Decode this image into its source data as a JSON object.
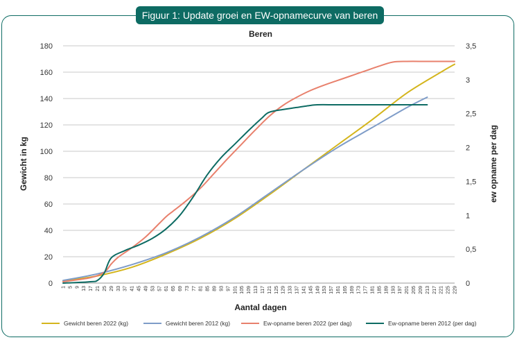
{
  "figure_title": "Figuur 1: Update groei en EW-opnamecurve van beren",
  "chart_data": {
    "type": "line",
    "title": "Beren",
    "xlabel": "Aantal dagen",
    "ylabel": "Gewicht in kg",
    "y2label": "ew opname per dag",
    "ylim": [
      0,
      180
    ],
    "y2lim": [
      0,
      3.5
    ],
    "yticks": [
      "0",
      "20",
      "40",
      "60",
      "80",
      "100",
      "120",
      "140",
      "160",
      "180"
    ],
    "y2ticks": [
      "0",
      "0,5",
      "1",
      "1,5",
      "2",
      "2,5",
      "3",
      "3,5"
    ],
    "xticks": [
      1,
      5,
      9,
      13,
      17,
      21,
      25,
      29,
      33,
      37,
      41,
      45,
      49,
      53,
      57,
      61,
      65,
      69,
      73,
      77,
      81,
      85,
      89,
      93,
      97,
      101,
      105,
      109,
      113,
      117,
      121,
      125,
      129,
      133,
      137,
      141,
      145,
      149,
      153,
      157,
      161,
      165,
      169,
      173,
      177,
      181,
      185,
      189,
      193,
      197,
      201,
      205,
      209,
      213,
      217,
      221,
      225,
      229
    ],
    "grid": true,
    "legend_position": "bottom",
    "series": [
      {
        "name": "Gewicht beren 2022 (kg)",
        "axis": "left",
        "color": "#d4b51c",
        "x": [
          1,
          21,
          41,
          61,
          81,
          101,
          121,
          141,
          161,
          181,
          201,
          221,
          229
        ],
        "values": [
          1.5,
          5.5,
          12,
          22,
          34,
          49,
          67,
          86,
          105,
          124,
          144,
          160,
          166
        ]
      },
      {
        "name": "Gewicht beren 2012 (kg)",
        "axis": "left",
        "color": "#7e9cc8",
        "x": [
          1,
          21,
          41,
          61,
          81,
          101,
          121,
          141,
          161,
          181,
          201,
          213
        ],
        "values": [
          2,
          7,
          14,
          23,
          35,
          50,
          68,
          86,
          103,
          118,
          133,
          141
        ]
      },
      {
        "name": "Ew-opname beren 2022 (per dag)",
        "axis": "right",
        "color": "#e8806c",
        "x": [
          1,
          17,
          25,
          29,
          33,
          41,
          49,
          57,
          61,
          65,
          73,
          81,
          89,
          97,
          105,
          113,
          121,
          129,
          137,
          145,
          153,
          161,
          169,
          177,
          185,
          193,
          201,
          213,
          229
        ],
        "values": [
          0.02,
          0.08,
          0.16,
          0.28,
          0.38,
          0.52,
          0.68,
          0.88,
          0.98,
          1.06,
          1.22,
          1.4,
          1.62,
          1.84,
          2.05,
          2.26,
          2.46,
          2.62,
          2.74,
          2.84,
          2.92,
          2.99,
          3.06,
          3.13,
          3.2,
          3.26,
          3.27,
          3.27,
          3.27
        ]
      },
      {
        "name": "Ew-opname beren 2012 (per dag)",
        "axis": "right",
        "color": "#0d6b63",
        "x": [
          1,
          17,
          21,
          25,
          29,
          37,
          45,
          53,
          61,
          69,
          77,
          85,
          93,
          101,
          109,
          117,
          121,
          129,
          137,
          145,
          149,
          161,
          181,
          201,
          213
        ],
        "values": [
          0,
          0.02,
          0.04,
          0.15,
          0.37,
          0.48,
          0.56,
          0.66,
          0.8,
          1.0,
          1.28,
          1.6,
          1.85,
          2.05,
          2.25,
          2.44,
          2.52,
          2.56,
          2.59,
          2.62,
          2.63,
          2.63,
          2.63,
          2.63,
          2.63
        ]
      }
    ]
  }
}
